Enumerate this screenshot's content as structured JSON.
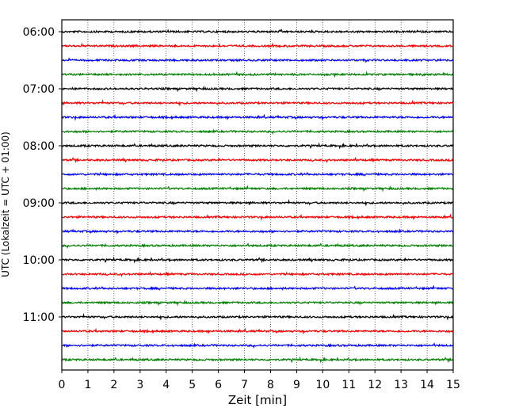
{
  "chart_data": {
    "type": "line",
    "title": "",
    "xlabel": "Zeit  [min]",
    "ylabel": "UTC (Lokalzeit = UTC + 01:00)",
    "xlim": [
      0,
      15
    ],
    "x_ticks": [
      "0",
      "1",
      "2",
      "3",
      "4",
      "5",
      "6",
      "7",
      "8",
      "9",
      "10",
      "11",
      "12",
      "13",
      "14",
      "15"
    ],
    "y_ticks": [
      "06:00",
      "07:00",
      "08:00",
      "09:00",
      "10:00",
      "11:00"
    ],
    "grid": "vertical dotted",
    "trace_interval_min": 15,
    "colors": [
      "#000000",
      "#ff0000",
      "#0000ff",
      "#008000"
    ],
    "traces": [
      {
        "start": "06:00",
        "color": "#000000"
      },
      {
        "start": "06:15",
        "color": "#ff0000"
      },
      {
        "start": "06:30",
        "color": "#0000ff"
      },
      {
        "start": "06:45",
        "color": "#008000"
      },
      {
        "start": "07:00",
        "color": "#000000"
      },
      {
        "start": "07:15",
        "color": "#ff0000"
      },
      {
        "start": "07:30",
        "color": "#0000ff"
      },
      {
        "start": "07:45",
        "color": "#008000"
      },
      {
        "start": "08:00",
        "color": "#000000"
      },
      {
        "start": "08:15",
        "color": "#ff0000"
      },
      {
        "start": "08:30",
        "color": "#0000ff"
      },
      {
        "start": "08:45",
        "color": "#008000"
      },
      {
        "start": "09:00",
        "color": "#000000"
      },
      {
        "start": "09:15",
        "color": "#ff0000"
      },
      {
        "start": "09:30",
        "color": "#0000ff"
      },
      {
        "start": "09:45",
        "color": "#008000"
      },
      {
        "start": "10:00",
        "color": "#000000"
      },
      {
        "start": "10:15",
        "color": "#ff0000"
      },
      {
        "start": "10:30",
        "color": "#0000ff"
      },
      {
        "start": "10:45",
        "color": "#008000"
      },
      {
        "start": "11:00",
        "color": "#000000"
      },
      {
        "start": "11:15",
        "color": "#ff0000"
      },
      {
        "start": "11:30",
        "color": "#0000ff"
      },
      {
        "start": "11:45",
        "color": "#008000"
      }
    ]
  }
}
